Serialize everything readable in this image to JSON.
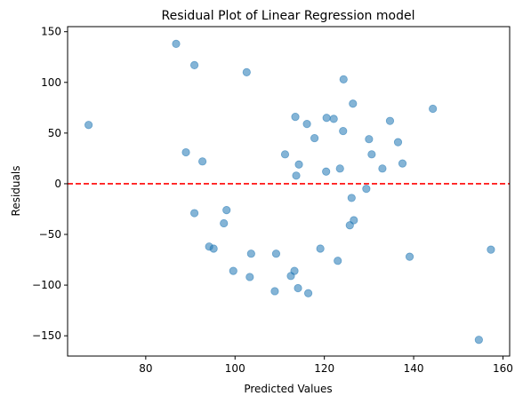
{
  "chart_data": {
    "type": "scatter",
    "title": "Residual Plot of Linear Regression model",
    "xlabel": "Predicted Values",
    "ylabel": "Residuals",
    "xlim": [
      62.5,
      161.5
    ],
    "ylim": [
      -170,
      155
    ],
    "xticks": [
      80,
      100,
      120,
      140,
      160
    ],
    "yticks": [
      -150,
      -100,
      -50,
      0,
      50,
      100,
      150
    ],
    "grid": false,
    "reference_line": {
      "y": 0,
      "style": "dashed",
      "color": "#ff0000"
    },
    "point_color": "#1f77b4",
    "points": [
      {
        "x": 67.2,
        "y": 58
      },
      {
        "x": 86.8,
        "y": 138
      },
      {
        "x": 89.0,
        "y": 31
      },
      {
        "x": 90.9,
        "y": 117
      },
      {
        "x": 90.9,
        "y": -29
      },
      {
        "x": 92.7,
        "y": 22
      },
      {
        "x": 94.2,
        "y": -62
      },
      {
        "x": 95.2,
        "y": -64
      },
      {
        "x": 97.5,
        "y": -39
      },
      {
        "x": 98.1,
        "y": -26
      },
      {
        "x": 99.6,
        "y": -86
      },
      {
        "x": 102.6,
        "y": 110
      },
      {
        "x": 103.3,
        "y": -92
      },
      {
        "x": 103.6,
        "y": -69
      },
      {
        "x": 108.9,
        "y": -106
      },
      {
        "x": 109.2,
        "y": -69
      },
      {
        "x": 111.2,
        "y": 29
      },
      {
        "x": 112.5,
        "y": -91
      },
      {
        "x": 113.3,
        "y": -86
      },
      {
        "x": 113.5,
        "y": 66
      },
      {
        "x": 113.7,
        "y": 8
      },
      {
        "x": 114.1,
        "y": -103
      },
      {
        "x": 114.3,
        "y": 19
      },
      {
        "x": 116.1,
        "y": 59
      },
      {
        "x": 116.4,
        "y": -108
      },
      {
        "x": 117.8,
        "y": 45
      },
      {
        "x": 119.1,
        "y": -64
      },
      {
        "x": 120.4,
        "y": 12
      },
      {
        "x": 120.5,
        "y": 65
      },
      {
        "x": 122.1,
        "y": 64
      },
      {
        "x": 123.0,
        "y": -76
      },
      {
        "x": 123.5,
        "y": 15
      },
      {
        "x": 124.2,
        "y": 52
      },
      {
        "x": 124.3,
        "y": 103
      },
      {
        "x": 125.7,
        "y": -41
      },
      {
        "x": 126.1,
        "y": -14
      },
      {
        "x": 126.4,
        "y": 79
      },
      {
        "x": 126.6,
        "y": -36
      },
      {
        "x": 129.4,
        "y": -5
      },
      {
        "x": 130.0,
        "y": 44
      },
      {
        "x": 130.6,
        "y": 29
      },
      {
        "x": 133.0,
        "y": 15
      },
      {
        "x": 134.7,
        "y": 62
      },
      {
        "x": 136.5,
        "y": 41
      },
      {
        "x": 137.5,
        "y": 20
      },
      {
        "x": 139.1,
        "y": -72
      },
      {
        "x": 144.3,
        "y": 74
      },
      {
        "x": 154.6,
        "y": -154
      },
      {
        "x": 157.3,
        "y": -65
      }
    ]
  }
}
